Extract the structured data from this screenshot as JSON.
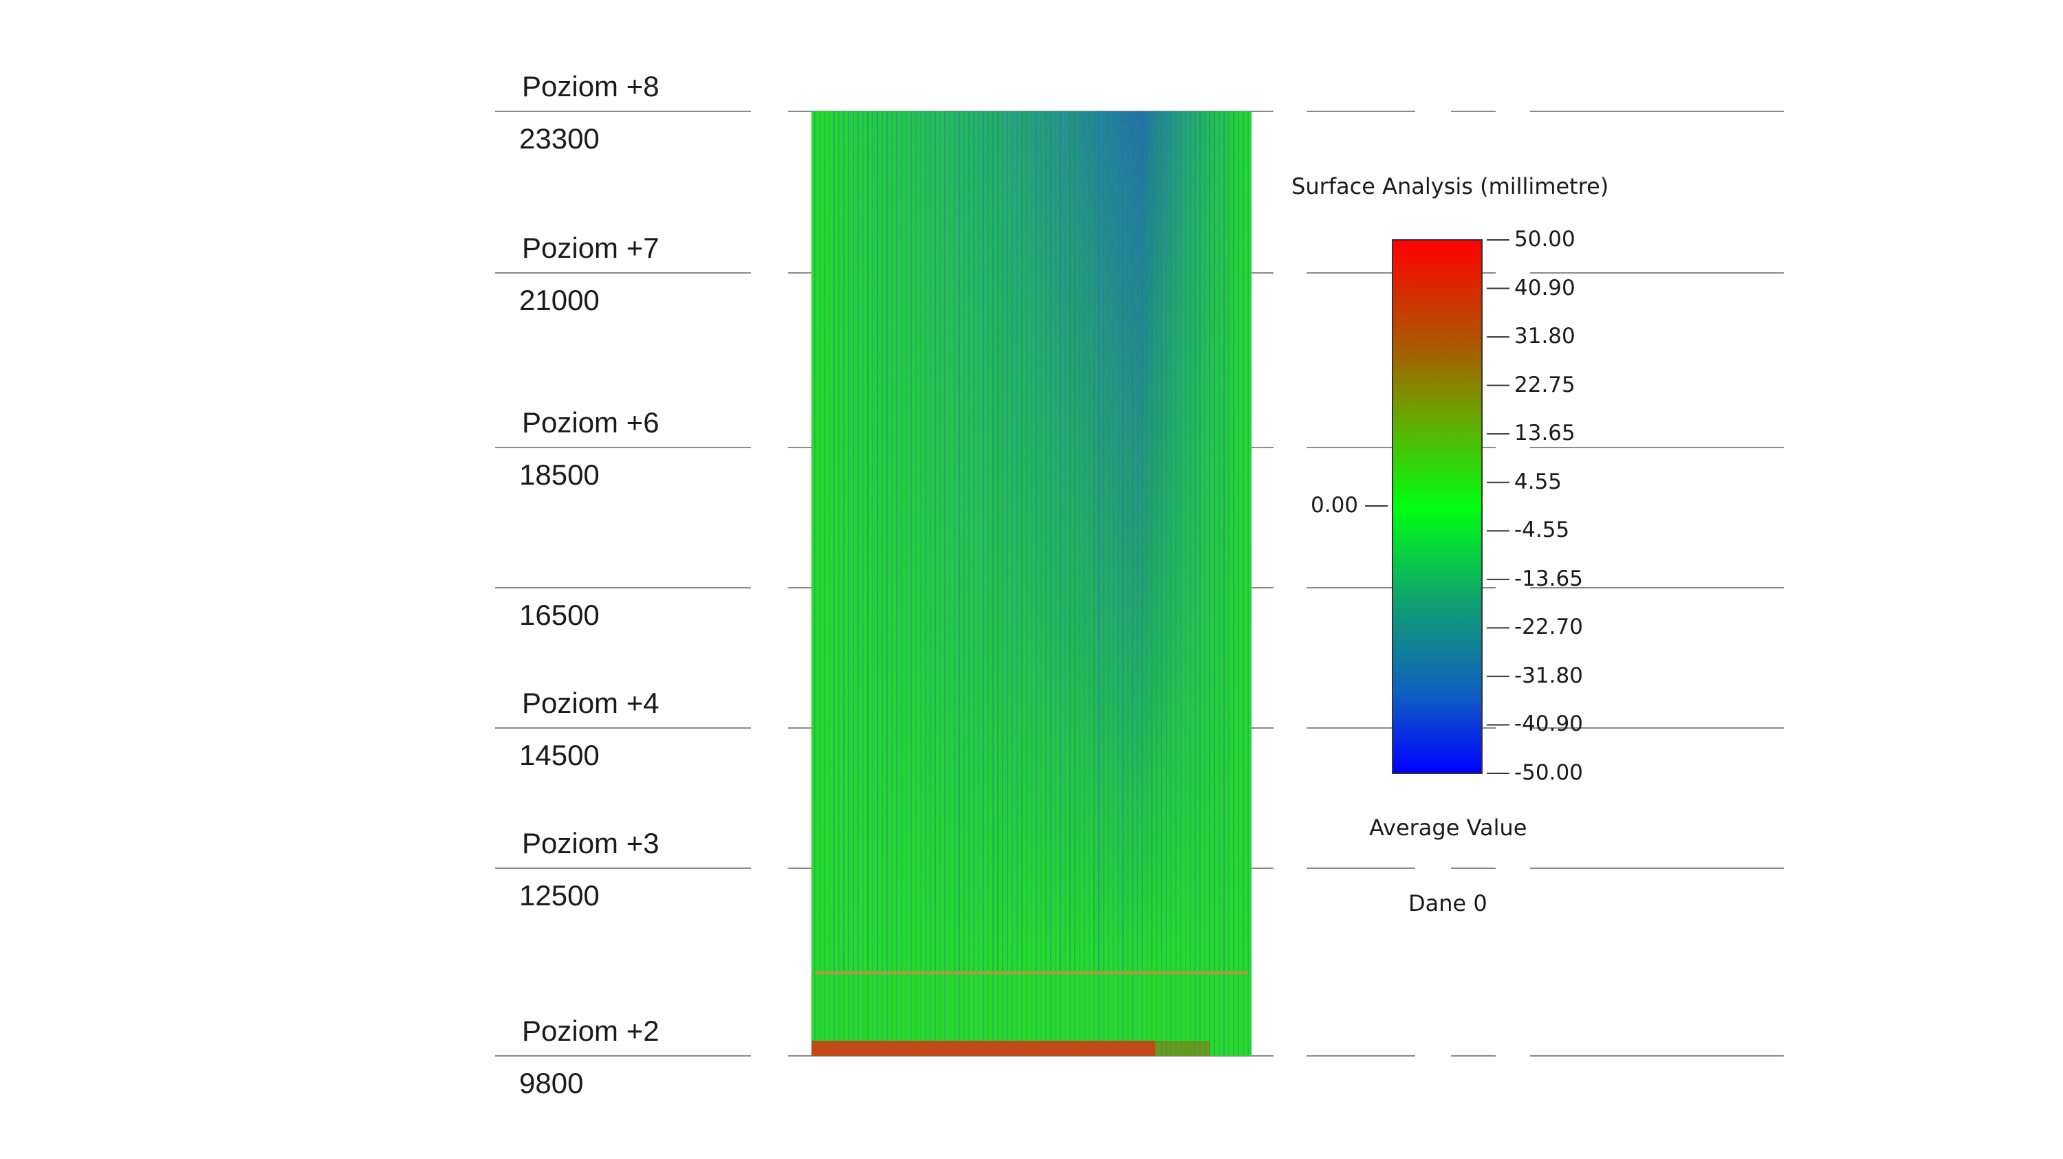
{
  "levels": [
    {
      "name": "Poziom +8",
      "elevation": "23300"
    },
    {
      "name": "Poziom +7",
      "elevation": "21000"
    },
    {
      "name": "Poziom +6",
      "elevation": "18500"
    },
    {
      "name": "",
      "elevation": "16500"
    },
    {
      "name": "Poziom +4",
      "elevation": "14500"
    },
    {
      "name": "Poziom +3",
      "elevation": "12500"
    },
    {
      "name": "Poziom +2",
      "elevation": "9800"
    }
  ],
  "legend": {
    "title": "Surface Analysis (millimetre)",
    "ticks": [
      "50.00",
      "40.90",
      "31.80",
      "22.75",
      "13.65",
      "4.55",
      "-4.55",
      "-13.65",
      "-22.70",
      "-31.80",
      "-40.90",
      "-50.00"
    ],
    "marker": "0.00",
    "caption1": "Average Value",
    "caption2": "Dane 0",
    "colors": {
      "max": "#ff0000",
      "mid": "#00ff00",
      "min": "#0000ff",
      "zero": "#00f020"
    }
  },
  "surface": {
    "base_color": "#22e02a",
    "deviation_colors": {
      "negative": "#2a7ad0",
      "positive": "#c8501a"
    }
  }
}
